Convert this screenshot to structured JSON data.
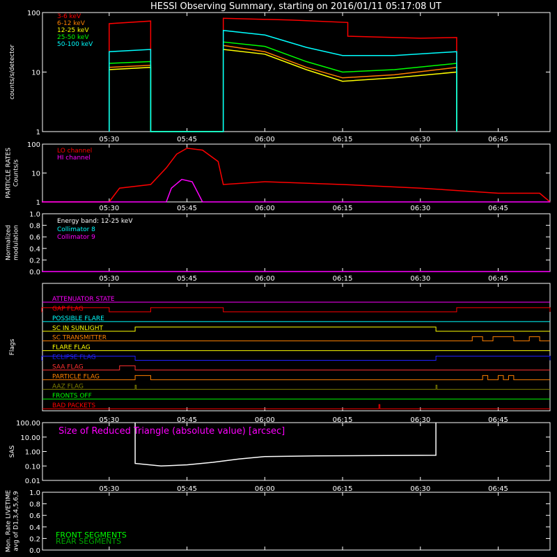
{
  "title": "HESSI Observing Summary, starting on 2016/01/11 05:17:08 UT",
  "time_ticks": [
    "05:30",
    "05:45",
    "06:00",
    "06:15",
    "06:30",
    "06:45"
  ],
  "chart_data": [
    {
      "type": "line",
      "panel": "count-rates",
      "ylabel": "counts/s/detector",
      "yscale": "log",
      "ylim": [
        1,
        100
      ],
      "yticks": [
        "1",
        "10",
        "100"
      ],
      "series": [
        {
          "name": "3-6 keV",
          "color": "#ff0000",
          "points": [
            [
              "05:30",
              1
            ],
            [
              "05:30",
              65
            ],
            [
              "05:38",
              72
            ],
            [
              "05:38",
              1
            ],
            [
              "05:52",
              1
            ],
            [
              "05:52",
              80
            ],
            [
              "06:05",
              75
            ],
            [
              "06:16",
              68
            ],
            [
              "06:16",
              40
            ],
            [
              "06:30",
              37
            ],
            [
              "06:37",
              38
            ],
            [
              "06:37",
              1
            ]
          ]
        },
        {
          "name": "6-12 keV",
          "color": "#ff8000",
          "points": [
            [
              "05:30",
              1
            ],
            [
              "05:30",
              12
            ],
            [
              "05:38",
              13
            ],
            [
              "05:38",
              1
            ],
            [
              "05:52",
              1
            ],
            [
              "05:52",
              28
            ],
            [
              "06:00",
              22
            ],
            [
              "06:08",
              12
            ],
            [
              "06:15",
              8
            ],
            [
              "06:25",
              9
            ],
            [
              "06:37",
              12
            ],
            [
              "06:37",
              1
            ]
          ]
        },
        {
          "name": "12-25 keV",
          "color": "#ffff00",
          "points": [
            [
              "05:30",
              1
            ],
            [
              "05:30",
              11
            ],
            [
              "05:38",
              12
            ],
            [
              "05:38",
              1
            ],
            [
              "05:52",
              1
            ],
            [
              "05:52",
              24
            ],
            [
              "06:00",
              20
            ],
            [
              "06:08",
              11
            ],
            [
              "06:15",
              7
            ],
            [
              "06:25",
              8
            ],
            [
              "06:37",
              10
            ],
            [
              "06:37",
              1
            ]
          ]
        },
        {
          "name": "25-50 keV",
          "color": "#00ff00",
          "points": [
            [
              "05:30",
              1
            ],
            [
              "05:30",
              14
            ],
            [
              "05:38",
              15
            ],
            [
              "05:38",
              1
            ],
            [
              "05:52",
              1
            ],
            [
              "05:52",
              32
            ],
            [
              "06:00",
              27
            ],
            [
              "06:08",
              15
            ],
            [
              "06:15",
              10
            ],
            [
              "06:25",
              11
            ],
            [
              "06:37",
              14
            ],
            [
              "06:37",
              1
            ]
          ]
        },
        {
          "name": "50-100 keV",
          "color": "#00ffff",
          "points": [
            [
              "05:30",
              1
            ],
            [
              "05:30",
              22
            ],
            [
              "05:38",
              24
            ],
            [
              "05:38",
              1
            ],
            [
              "05:52",
              1
            ],
            [
              "05:52",
              50
            ],
            [
              "06:00",
              42
            ],
            [
              "06:08",
              26
            ],
            [
              "06:15",
              19
            ],
            [
              "06:25",
              19
            ],
            [
              "06:37",
              22
            ],
            [
              "06:37",
              1
            ]
          ]
        }
      ]
    },
    {
      "type": "line",
      "panel": "particle-rates",
      "ylabel": "PARTICLE RATES Counts/s",
      "yscale": "log",
      "ylim": [
        1,
        100
      ],
      "yticks": [
        "1",
        "10",
        "100"
      ],
      "series": [
        {
          "name": "LO channel",
          "color": "#ff0000",
          "points": [
            [
              "05:17",
              1
            ],
            [
              "05:30",
              1
            ],
            [
              "05:32",
              3
            ],
            [
              "05:38",
              4
            ],
            [
              "05:41",
              15
            ],
            [
              "05:43",
              45
            ],
            [
              "05:45",
              72
            ],
            [
              "05:48",
              62
            ],
            [
              "05:51",
              25
            ],
            [
              "05:52",
              4
            ],
            [
              "06:00",
              5
            ],
            [
              "06:15",
              4
            ],
            [
              "06:30",
              3
            ],
            [
              "06:45",
              2
            ],
            [
              "06:53",
              2
            ],
            [
              "06:55",
              1
            ]
          ]
        },
        {
          "name": "HI channel",
          "color": "#ff00ff",
          "points": [
            [
              "05:17",
              1
            ],
            [
              "05:41",
              1
            ],
            [
              "05:42",
              3
            ],
            [
              "05:44",
              6
            ],
            [
              "05:46",
              5
            ],
            [
              "05:48",
              1
            ],
            [
              "06:55",
              1
            ]
          ]
        }
      ]
    },
    {
      "type": "line",
      "panel": "modulation",
      "ylabel": "Normalized modulation",
      "ylim": [
        0,
        1
      ],
      "yticks": [
        "0.0",
        "0.2",
        "0.4",
        "0.6",
        "0.8",
        "1.0"
      ],
      "annotation": "Energy band: 12-25 keV",
      "series": [
        {
          "name": "Collimator 8",
          "color": "#00ffff",
          "points": []
        },
        {
          "name": "Collimator 9",
          "color": "#ff00ff",
          "points": [
            [
              "05:17",
              0
            ],
            [
              "06:55",
              0
            ]
          ]
        }
      ]
    },
    {
      "type": "line",
      "panel": "flags",
      "ylabel": "Flags",
      "flags": [
        {
          "name": "ATTENUATOR STATE",
          "color": "#ff00ff",
          "high": []
        },
        {
          "name": "GAP FLAG",
          "color": "#ff0000",
          "high": [
            [
              "05:17",
              "05:30"
            ],
            [
              "05:38",
              "05:52"
            ],
            [
              "06:37",
              "06:55"
            ]
          ]
        },
        {
          "name": "POSSIBLE FLARE",
          "color": "#00ffff",
          "high": []
        },
        {
          "name": "SC IN SUNLIGHT",
          "color": "#ffff00",
          "high": [
            [
              "05:35",
              "06:33"
            ]
          ]
        },
        {
          "name": "SC TRANSMITTER",
          "color": "#ff8000",
          "high": [
            [
              "06:40",
              "06:42"
            ],
            [
              "06:44",
              "06:48"
            ],
            [
              "06:51",
              "06:53"
            ]
          ]
        },
        {
          "name": "FLARE FLAG",
          "color": "#ffff00",
          "high": []
        },
        {
          "name": "ECLIPSE FLAG",
          "color": "#2020ff",
          "high": [
            [
              "05:17",
              "05:35"
            ],
            [
              "06:33",
              "06:55"
            ]
          ]
        },
        {
          "name": "SAA FLAG",
          "color": "#ff3030",
          "high": [
            [
              "05:32",
              "05:35"
            ]
          ]
        },
        {
          "name": "PARTICLE FLAG",
          "color": "#ff8000",
          "high": [
            [
              "05:35",
              "05:38"
            ],
            [
              "06:42",
              "06:43"
            ],
            [
              "06:45",
              "06:46"
            ],
            [
              "06:47",
              "06:48"
            ]
          ]
        },
        {
          "name": "AAZ FLAG",
          "color": "#808000",
          "high": [
            [
              "05:35",
              "05:35"
            ],
            [
              "06:33",
              "06:33"
            ]
          ]
        },
        {
          "name": "FRONTS OFF",
          "color": "#00ff00",
          "high": []
        },
        {
          "name": "BAD PACKETS",
          "color": "#ff0000",
          "high": [
            [
              "06:22",
              "06:22"
            ]
          ]
        }
      ]
    },
    {
      "type": "line",
      "panel": "sas",
      "ylabel": "SAS",
      "yscale": "log",
      "ylim": [
        0.01,
        100
      ],
      "yticks": [
        "0.01",
        "0.10",
        "1.00",
        "10.00",
        "100.00"
      ],
      "annotation": "Size of Reduced Triangle (absolute value) [arcsec]",
      "series": [
        {
          "name": "",
          "color": "#ffffff",
          "points": [
            [
              "05:35",
              100
            ],
            [
              "05:35",
              0.15
            ],
            [
              "05:40",
              0.1
            ],
            [
              "05:45",
              0.12
            ],
            [
              "05:50",
              0.18
            ],
            [
              "05:55",
              0.3
            ],
            [
              "06:00",
              0.45
            ],
            [
              "06:10",
              0.5
            ],
            [
              "06:20",
              0.52
            ],
            [
              "06:33",
              0.55
            ],
            [
              "06:33",
              100
            ]
          ]
        }
      ]
    },
    {
      "type": "line",
      "panel": "livetime",
      "ylabel": "Mon. Rate LIVETIME avg of D1,3,4,5,6,9",
      "ylim": [
        0,
        1
      ],
      "yticks": [
        "0.0",
        "0.2",
        "0.4",
        "0.6",
        "0.8",
        "1.0"
      ],
      "series": [
        {
          "name": "FRONT SEGMENTS",
          "color": "#00ff00",
          "points": []
        },
        {
          "name": "REAR SEGMENTS",
          "color": "#00aa00",
          "points": []
        }
      ]
    }
  ]
}
